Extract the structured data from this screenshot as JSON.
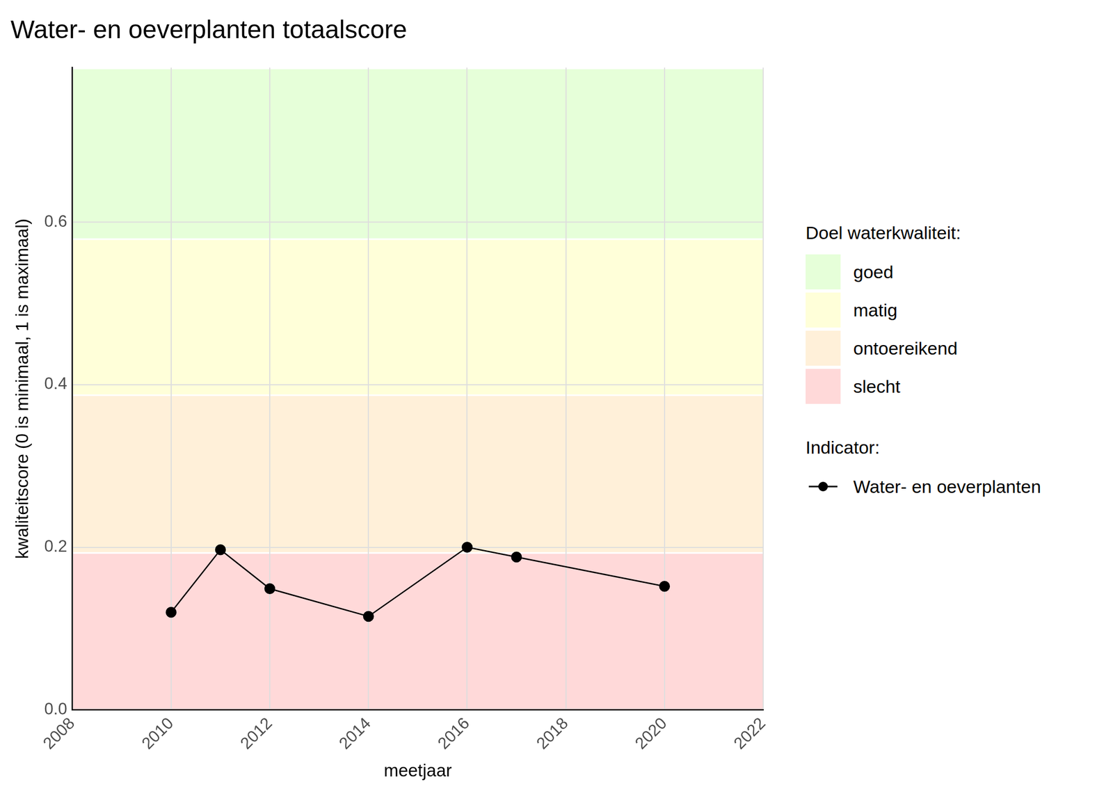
{
  "chart_data": {
    "type": "line",
    "title": "Water- en oeverplanten totaalscore",
    "x_label": "meetjaar",
    "y_label": "kwaliteitscore (0 is minimaal, 1 is maximaal)",
    "x": [
      2010,
      2011,
      2012,
      2014,
      2016,
      2017,
      2020
    ],
    "series": [
      {
        "name": "Water- en oeverplanten",
        "color": "#000000",
        "marker": "circle",
        "line_style": "solid",
        "values": [
          0.12,
          0.197,
          0.149,
          0.115,
          0.2,
          0.188,
          0.152
        ]
      }
    ],
    "xlim": [
      2008,
      2022
    ],
    "xticks": [
      2008,
      2010,
      2012,
      2014,
      2016,
      2018,
      2020,
      2022
    ],
    "ylim": [
      0,
      0.79
    ],
    "yticks": [
      {
        "value": 0,
        "label": "0.0"
      },
      0.2,
      0.4,
      0.6
    ],
    "grid": true,
    "legend": "right",
    "bands_title": "Doel waterkwaliteit:",
    "legend_title": "Indicator:",
    "bands": [
      {
        "name": "goed",
        "color": "#e6ffd9",
        "from": 0.58,
        "to": 0.79
      },
      {
        "name": "matig",
        "color": "#ffffd9",
        "from": 0.388,
        "to": 0.58
      },
      {
        "name": "ontoereikend",
        "color": "#fff0d9",
        "from": 0.194,
        "to": 0.388
      },
      {
        "name": "slecht",
        "color": "#ffd9d9",
        "from": 0,
        "to": 0.194
      }
    ]
  }
}
